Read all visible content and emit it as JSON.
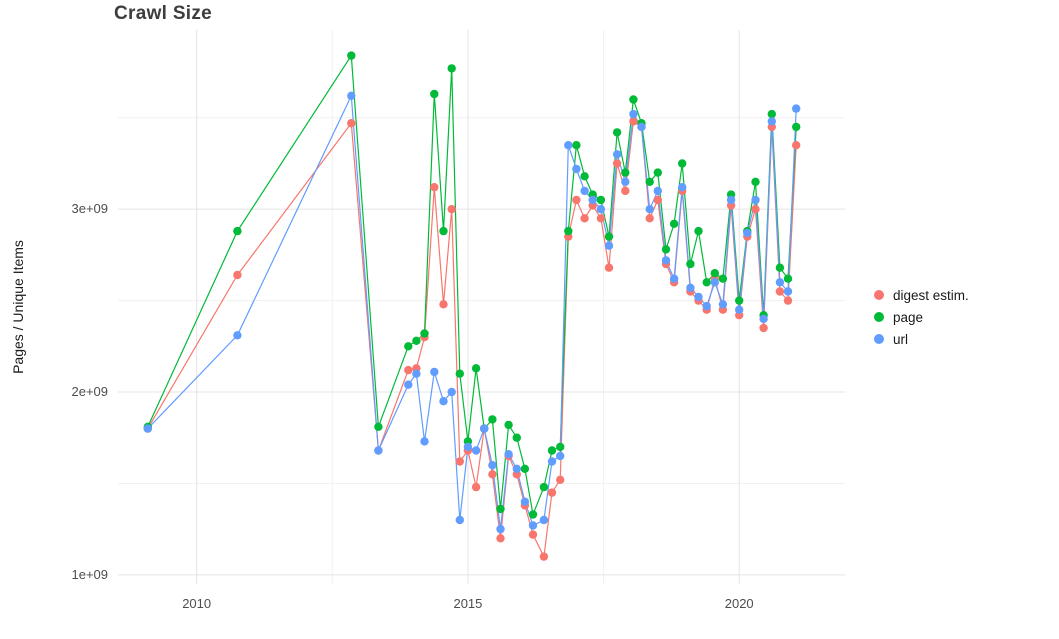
{
  "title": "Crawl Size",
  "axes": {
    "y_label": "Pages / Unique Items",
    "y_ticks": [
      "1e+09",
      "2e+09",
      "3e+09"
    ],
    "x_ticks": [
      "2010",
      "2015",
      "2020"
    ]
  },
  "legend": {
    "items": [
      {
        "label": "digest estim.",
        "color": "#F8766D"
      },
      {
        "label": "page",
        "color": "#00BA38"
      },
      {
        "label": "url",
        "color": "#619CFF"
      }
    ]
  },
  "chart_data": {
    "type": "line",
    "title": "Crawl Size",
    "xlabel": "",
    "ylabel": "Pages / Unique Items",
    "x_unit": "year (decimal)",
    "xlim": [
      2008.55,
      2021.95
    ],
    "ylim": [
      950000000.0,
      3980000000.0
    ],
    "x_tick_values": [
      2010,
      2015,
      2020
    ],
    "x_minor_tick_values": [
      2012.5,
      2017.5
    ],
    "y_tick_values": [
      1000000000.0,
      2000000000.0,
      3000000000.0
    ],
    "y_minor_tick_values": [
      1500000000.0,
      2500000000.0,
      3500000000.0
    ],
    "grid": true,
    "legend_position": "right",
    "marker": "point",
    "x": [
      2009.1,
      2010.75,
      2012.85,
      2013.35,
      2013.9,
      2014.05,
      2014.2,
      2014.38,
      2014.55,
      2014.7,
      2014.85,
      2015.0,
      2015.15,
      2015.3,
      2015.45,
      2015.6,
      2015.75,
      2015.9,
      2016.05,
      2016.2,
      2016.4,
      2016.55,
      2016.7,
      2016.85,
      2017.0,
      2017.15,
      2017.3,
      2017.45,
      2017.6,
      2017.75,
      2017.9,
      2018.05,
      2018.2,
      2018.35,
      2018.5,
      2018.65,
      2018.8,
      2018.95,
      2019.1,
      2019.25,
      2019.4,
      2019.55,
      2019.7,
      2019.85,
      2020.0,
      2020.15,
      2020.3,
      2020.45,
      2020.6,
      2020.75,
      2020.9,
      2021.05
    ],
    "series": [
      {
        "name": "digest estim.",
        "color": "#F8766D",
        "values": [
          1800000000.0,
          2640000000.0,
          3470000000.0,
          1680000000.0,
          2120000000.0,
          2130000000.0,
          2300000000.0,
          3120000000.0,
          2480000000.0,
          3000000000.0,
          1620000000.0,
          1680000000.0,
          1480000000.0,
          1800000000.0,
          1550000000.0,
          1200000000.0,
          1650000000.0,
          1550000000.0,
          1380000000.0,
          1220000000.0,
          1100000000.0,
          1450000000.0,
          1520000000.0,
          2850000000.0,
          3050000000.0,
          2950000000.0,
          3020000000.0,
          2950000000.0,
          2680000000.0,
          3250000000.0,
          3100000000.0,
          3480000000.0,
          3450000000.0,
          2950000000.0,
          3050000000.0,
          2700000000.0,
          2600000000.0,
          3100000000.0,
          2550000000.0,
          2500000000.0,
          2450000000.0,
          2620000000.0,
          2450000000.0,
          3020000000.0,
          2420000000.0,
          2850000000.0,
          3000000000.0,
          2350000000.0,
          3450000000.0,
          2550000000.0,
          2500000000.0,
          3350000000.0
        ]
      },
      {
        "name": "page",
        "color": "#00BA38",
        "values": [
          1810000000.0,
          2880000000.0,
          3840000000.0,
          1810000000.0,
          2250000000.0,
          2280000000.0,
          2320000000.0,
          3630000000.0,
          2880000000.0,
          3770000000.0,
          2100000000.0,
          1730000000.0,
          2130000000.0,
          1800000000.0,
          1850000000.0,
          1360000000.0,
          1820000000.0,
          1750000000.0,
          1580000000.0,
          1330000000.0,
          1480000000.0,
          1680000000.0,
          1700000000.0,
          2880000000.0,
          3350000000.0,
          3180000000.0,
          3080000000.0,
          3050000000.0,
          2850000000.0,
          3420000000.0,
          3200000000.0,
          3600000000.0,
          3470000000.0,
          3150000000.0,
          3200000000.0,
          2780000000.0,
          2920000000.0,
          3250000000.0,
          2700000000.0,
          2880000000.0,
          2600000000.0,
          2650000000.0,
          2620000000.0,
          3080000000.0,
          2500000000.0,
          2880000000.0,
          3150000000.0,
          2420000000.0,
          3520000000.0,
          2680000000.0,
          2620000000.0,
          3450000000.0
        ]
      },
      {
        "name": "url",
        "color": "#619CFF",
        "values": [
          1800000000.0,
          2310000000.0,
          3620000000.0,
          1680000000.0,
          2040000000.0,
          2100000000.0,
          1730000000.0,
          2110000000.0,
          1950000000.0,
          2000000000.0,
          1300000000.0,
          1700000000.0,
          1680000000.0,
          1800000000.0,
          1600000000.0,
          1250000000.0,
          1660000000.0,
          1580000000.0,
          1400000000.0,
          1270000000.0,
          1300000000.0,
          1620000000.0,
          1650000000.0,
          3350000000.0,
          3220000000.0,
          3100000000.0,
          3050000000.0,
          3000000000.0,
          2800000000.0,
          3300000000.0,
          3150000000.0,
          3520000000.0,
          3450000000.0,
          3000000000.0,
          3100000000.0,
          2720000000.0,
          2620000000.0,
          3120000000.0,
          2570000000.0,
          2520000000.0,
          2470000000.0,
          2600000000.0,
          2480000000.0,
          3050000000.0,
          2450000000.0,
          2870000000.0,
          3050000000.0,
          2400000000.0,
          3480000000.0,
          2600000000.0,
          2550000000.0,
          3550000000.0
        ]
      }
    ]
  }
}
